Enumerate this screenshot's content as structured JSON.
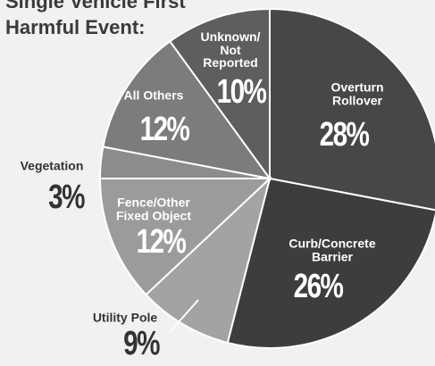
{
  "chart_data": {
    "type": "pie",
    "title": "Single Vehicle First\nHarmful Event:",
    "categories": [
      "Overturn\nRollover",
      "Curb/Concrete\nBarrier",
      "Utility Pole",
      "Fence/Other\nFixed Object",
      "Vegetation",
      "All Others",
      "Unknown/\nNot\nReported"
    ],
    "values": [
      28,
      26,
      9,
      12,
      3,
      12,
      10
    ],
    "value_labels": [
      "28%",
      "26%",
      "9%",
      "12%",
      "3%",
      "12%",
      "10%"
    ],
    "colors": [
      "#474747",
      "#3d3d3d",
      "#a3a3a3",
      "#9b9b9b",
      "#8c8c8c",
      "#7c7c7c",
      "#5e5e5e"
    ]
  }
}
